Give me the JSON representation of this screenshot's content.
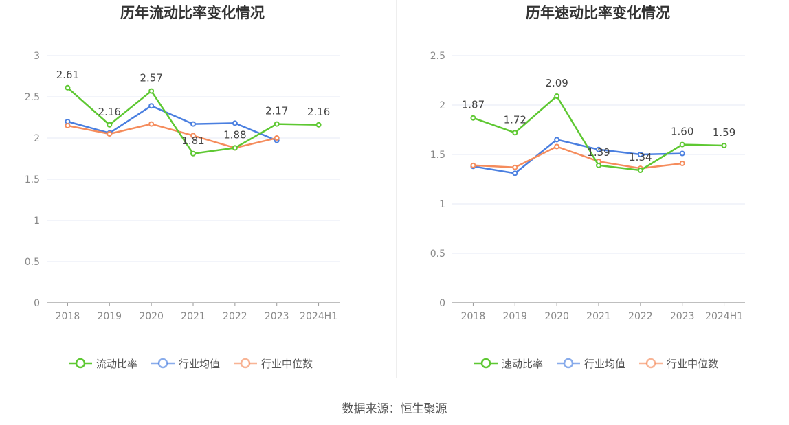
{
  "source": "数据来源：恒生聚源",
  "chart_data": [
    {
      "type": "line",
      "title": "历年流动比率变化情况",
      "categories": [
        "2018",
        "2019",
        "2020",
        "2021",
        "2022",
        "2023",
        "2024H1"
      ],
      "ylim": [
        0,
        3
      ],
      "yticks": [
        0,
        0.5,
        1,
        1.5,
        2,
        2.5,
        3
      ],
      "grid": true,
      "legend_position": "bottom",
      "series": [
        {
          "name": "流动比率",
          "color": "#5ec832",
          "values": [
            2.61,
            2.16,
            2.57,
            1.81,
            1.88,
            2.17,
            2.16
          ],
          "labels": [
            "2.61",
            "2.16",
            "2.57",
            "1.81",
            "1.88",
            "2.17",
            "2.16"
          ]
        },
        {
          "name": "行业均值",
          "color": "#4a7fe0",
          "values": [
            2.2,
            2.06,
            2.39,
            2.17,
            2.18,
            1.97,
            null
          ]
        },
        {
          "name": "行业中位数",
          "color": "#f58c5c",
          "values": [
            2.15,
            2.05,
            2.17,
            2.03,
            1.88,
            2.0,
            null
          ]
        }
      ]
    },
    {
      "type": "line",
      "title": "历年速动比率变化情况",
      "categories": [
        "2018",
        "2019",
        "2020",
        "2021",
        "2022",
        "2023",
        "2024H1"
      ],
      "ylim": [
        0,
        2.5
      ],
      "yticks": [
        0,
        0.5,
        1,
        1.5,
        2,
        2.5
      ],
      "grid": true,
      "legend_position": "bottom",
      "series": [
        {
          "name": "速动比率",
          "color": "#5ec832",
          "values": [
            1.87,
            1.72,
            2.09,
            1.39,
            1.34,
            1.6,
            1.59
          ],
          "labels": [
            "1.87",
            "1.72",
            "2.09",
            "1.39",
            "1.34",
            "1.60",
            "1.59"
          ]
        },
        {
          "name": "行业均值",
          "color": "#4a7fe0",
          "values": [
            1.38,
            1.31,
            1.65,
            1.55,
            1.5,
            1.51,
            null
          ]
        },
        {
          "name": "行业中位数",
          "color": "#f58c5c",
          "values": [
            1.39,
            1.37,
            1.58,
            1.43,
            1.36,
            1.41,
            null
          ]
        }
      ]
    }
  ]
}
